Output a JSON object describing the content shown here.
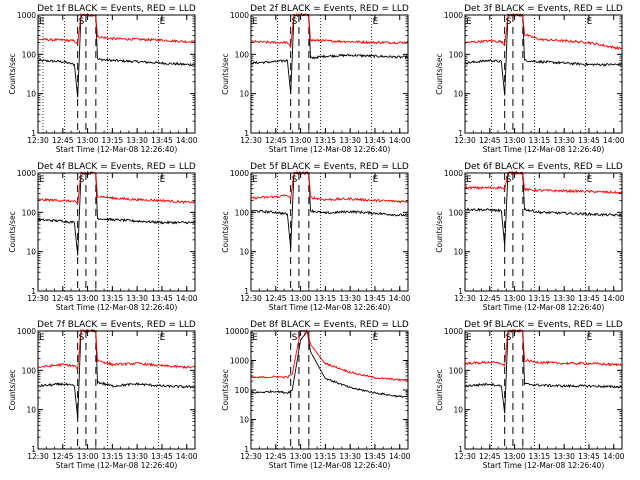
{
  "xlabel": "Start Time (12-Mar-08 12:26:40)",
  "ylabel": "Counts/sec",
  "marker_labels": [
    "E",
    "S",
    "E"
  ],
  "colors": {
    "events": "#000000",
    "lld": "#ff0000",
    "axes": "#000000"
  },
  "chart_data": [
    {
      "type": "line",
      "title": "Det 1f BLACK = Events, RED = LLD",
      "xlim": [
        "12:30",
        "14:05"
      ],
      "ylim": [
        1,
        1000
      ],
      "yscale": "log",
      "xticks": [
        "12:30",
        "12:45",
        "13:00",
        "13:15",
        "13:30",
        "13:45",
        "14:00"
      ],
      "yticks": [
        "1",
        "10",
        "100",
        "1000"
      ],
      "dotted_lines_x": [
        "12:33",
        "12:46",
        "13:12",
        "13:43"
      ],
      "dashed_lines_x": [
        "12:54",
        "12:59",
        "13:05"
      ],
      "series": [
        {
          "name": "Events",
          "x": [
            "12:30",
            "12:45",
            "12:52",
            "12:54",
            "12:56",
            "13:05",
            "13:06",
            "13:15",
            "13:30",
            "13:45",
            "14:00",
            "14:05"
          ],
          "values": [
            70,
            65,
            55,
            8,
            1000,
            1000,
            75,
            70,
            65,
            60,
            55,
            55
          ]
        },
        {
          "name": "LLD",
          "x": [
            "12:30",
            "12:45",
            "12:52",
            "12:54",
            "12:56",
            "13:05",
            "13:06",
            "13:15",
            "13:30",
            "13:45",
            "14:00",
            "14:05"
          ],
          "values": [
            240,
            230,
            220,
            180,
            1000,
            1000,
            280,
            250,
            240,
            230,
            210,
            210
          ]
        }
      ]
    },
    {
      "type": "line",
      "title": "Det 2f BLACK = Events, RED = LLD",
      "xlim": [
        "12:30",
        "14:05"
      ],
      "ylim": [
        1,
        1000
      ],
      "yscale": "log",
      "xticks": [
        "12:30",
        "12:45",
        "13:00",
        "13:15",
        "13:30",
        "13:45",
        "14:00"
      ],
      "yticks": [
        "1",
        "10",
        "100",
        "1000"
      ],
      "dotted_lines_x": [
        "12:46",
        "13:12",
        "13:43"
      ],
      "dashed_lines_x": [
        "12:54",
        "12:59",
        "13:05"
      ],
      "series": [
        {
          "name": "Events",
          "x": [
            "12:30",
            "12:45",
            "12:52",
            "12:54",
            "12:56",
            "13:05",
            "13:06",
            "13:15",
            "13:30",
            "13:45",
            "14:00",
            "14:05"
          ],
          "values": [
            60,
            65,
            70,
            10,
            1000,
            1000,
            80,
            90,
            95,
            90,
            85,
            85
          ]
        },
        {
          "name": "LLD",
          "x": [
            "12:30",
            "12:45",
            "12:52",
            "12:54",
            "12:56",
            "13:05",
            "13:06",
            "13:15",
            "13:30",
            "13:45",
            "14:00",
            "14:05"
          ],
          "values": [
            210,
            200,
            200,
            150,
            1000,
            1000,
            230,
            220,
            210,
            200,
            200,
            200
          ]
        }
      ]
    },
    {
      "type": "line",
      "title": "Det 3f BLACK = Events, RED = LLD",
      "xlim": [
        "12:30",
        "14:05"
      ],
      "ylim": [
        1,
        1000
      ],
      "yscale": "log",
      "xticks": [
        "12:30",
        "12:45",
        "13:00",
        "13:15",
        "13:30",
        "13:45",
        "14:00"
      ],
      "yticks": [
        "1",
        "10",
        "100",
        "1000"
      ],
      "dotted_lines_x": [
        "12:46",
        "13:12",
        "13:43"
      ],
      "dashed_lines_x": [
        "12:54",
        "12:59",
        "13:05"
      ],
      "series": [
        {
          "name": "Events",
          "x": [
            "12:30",
            "12:45",
            "12:52",
            "12:54",
            "12:56",
            "13:05",
            "13:06",
            "13:15",
            "13:30",
            "13:45",
            "14:00",
            "14:05"
          ],
          "values": [
            60,
            70,
            65,
            9,
            1000,
            1000,
            70,
            65,
            60,
            55,
            55,
            55
          ]
        },
        {
          "name": "LLD",
          "x": [
            "12:30",
            "12:45",
            "12:52",
            "12:54",
            "12:56",
            "13:05",
            "13:06",
            "13:15",
            "13:30",
            "13:45",
            "14:00",
            "14:05"
          ],
          "values": [
            200,
            220,
            210,
            170,
            1000,
            1000,
            320,
            240,
            220,
            200,
            150,
            140
          ]
        }
      ]
    },
    {
      "type": "line",
      "title": "Det 4f BLACK = Events, RED = LLD",
      "xlim": [
        "12:30",
        "14:05"
      ],
      "ylim": [
        1,
        1000
      ],
      "yscale": "log",
      "xticks": [
        "12:30",
        "12:45",
        "13:00",
        "13:15",
        "13:30",
        "13:45",
        "14:00"
      ],
      "yticks": [
        "1",
        "10",
        "100",
        "1000"
      ],
      "dotted_lines_x": [
        "12:46",
        "13:12",
        "13:43"
      ],
      "dashed_lines_x": [
        "12:54",
        "12:59",
        "13:05"
      ],
      "series": [
        {
          "name": "Events",
          "x": [
            "12:30",
            "12:45",
            "12:52",
            "12:54",
            "12:56",
            "13:05",
            "13:06",
            "13:15",
            "13:30",
            "13:45",
            "14:00",
            "14:05"
          ],
          "values": [
            65,
            60,
            55,
            8,
            1000,
            1000,
            70,
            65,
            60,
            55,
            55,
            55
          ]
        },
        {
          "name": "LLD",
          "x": [
            "12:30",
            "12:45",
            "12:52",
            "12:54",
            "12:56",
            "13:05",
            "13:06",
            "13:15",
            "13:30",
            "13:45",
            "14:00",
            "14:05"
          ],
          "values": [
            210,
            200,
            190,
            160,
            1000,
            1000,
            260,
            230,
            210,
            200,
            180,
            180
          ]
        }
      ]
    },
    {
      "type": "line",
      "title": "Det 5f BLACK = Events, RED = LLD",
      "xlim": [
        "12:30",
        "14:05"
      ],
      "ylim": [
        1,
        1000
      ],
      "yscale": "log",
      "xticks": [
        "12:30",
        "12:45",
        "13:00",
        "13:15",
        "13:30",
        "13:45",
        "14:00"
      ],
      "yticks": [
        "1",
        "10",
        "100",
        "1000"
      ],
      "dotted_lines_x": [
        "12:46",
        "13:12",
        "13:43"
      ],
      "dashed_lines_x": [
        "12:54",
        "12:59",
        "13:05"
      ],
      "series": [
        {
          "name": "Events",
          "x": [
            "12:30",
            "12:45",
            "12:52",
            "12:54",
            "12:56",
            "13:05",
            "13:06",
            "13:15",
            "13:30",
            "13:45",
            "14:00",
            "14:05"
          ],
          "values": [
            110,
            100,
            90,
            12,
            1000,
            1000,
            110,
            95,
            105,
            95,
            85,
            85
          ]
        },
        {
          "name": "LLD",
          "x": [
            "12:30",
            "12:45",
            "12:52",
            "12:54",
            "12:56",
            "13:05",
            "13:06",
            "13:15",
            "13:30",
            "13:45",
            "14:00",
            "14:05"
          ],
          "values": [
            230,
            250,
            270,
            220,
            1000,
            1000,
            240,
            210,
            220,
            200,
            190,
            190
          ]
        }
      ]
    },
    {
      "type": "line",
      "title": "Det 6f BLACK = Events, RED = LLD",
      "xlim": [
        "12:30",
        "14:05"
      ],
      "ylim": [
        1,
        1000
      ],
      "yscale": "log",
      "xticks": [
        "12:30",
        "12:45",
        "13:00",
        "13:15",
        "13:30",
        "13:45",
        "14:00"
      ],
      "yticks": [
        "1",
        "10",
        "100",
        "1000"
      ],
      "dotted_lines_x": [
        "12:46",
        "13:12",
        "13:43"
      ],
      "dashed_lines_x": [
        "12:54",
        "12:59",
        "13:05"
      ],
      "series": [
        {
          "name": "Events",
          "x": [
            "12:30",
            "12:45",
            "12:52",
            "12:54",
            "12:56",
            "13:05",
            "13:06",
            "13:15",
            "13:30",
            "13:45",
            "14:00",
            "14:05"
          ],
          "values": [
            120,
            115,
            110,
            14,
            1000,
            1000,
            120,
            100,
            95,
            90,
            85,
            85
          ]
        },
        {
          "name": "LLD",
          "x": [
            "12:30",
            "12:45",
            "12:52",
            "12:54",
            "12:56",
            "13:05",
            "13:06",
            "13:15",
            "13:30",
            "13:45",
            "14:00",
            "14:05"
          ],
          "values": [
            420,
            420,
            430,
            380,
            1000,
            1000,
            380,
            360,
            350,
            340,
            320,
            310
          ]
        }
      ]
    },
    {
      "type": "line",
      "title": "Det 7f BLACK = Events, RED = LLD",
      "xlim": [
        "12:30",
        "14:05"
      ],
      "ylim": [
        1,
        1000
      ],
      "yscale": "log",
      "xticks": [
        "12:30",
        "12:45",
        "13:00",
        "13:15",
        "13:30",
        "13:45",
        "14:00"
      ],
      "yticks": [
        "1",
        "10",
        "100",
        "1000"
      ],
      "dotted_lines_x": [
        "12:46",
        "13:12",
        "13:43"
      ],
      "dashed_lines_x": [
        "12:54",
        "12:59",
        "13:05"
      ],
      "series": [
        {
          "name": "Events",
          "x": [
            "12:30",
            "12:45",
            "12:52",
            "12:54",
            "12:56",
            "13:05",
            "13:06",
            "13:15",
            "13:30",
            "13:45",
            "14:00",
            "14:05"
          ],
          "values": [
            40,
            45,
            40,
            6,
            1000,
            1000,
            50,
            40,
            45,
            40,
            38,
            38
          ]
        },
        {
          "name": "LLD",
          "x": [
            "12:30",
            "12:45",
            "12:52",
            "12:54",
            "12:56",
            "13:05",
            "13:06",
            "13:15",
            "13:30",
            "13:45",
            "14:00",
            "14:05"
          ],
          "values": [
            120,
            140,
            130,
            110,
            1000,
            1000,
            180,
            140,
            150,
            130,
            120,
            120
          ]
        }
      ]
    },
    {
      "type": "line",
      "title": "Det 8f BLACK = Events, RED = LLD",
      "xlim": [
        "12:30",
        "14:05"
      ],
      "ylim": [
        1,
        10000
      ],
      "yscale": "log",
      "xticks": [
        "12:30",
        "12:45",
        "13:00",
        "13:15",
        "13:30",
        "13:45",
        "14:00"
      ],
      "yticks": [
        "1",
        "10",
        "100",
        "1000",
        "10000"
      ],
      "dotted_lines_x": [
        "12:46",
        "13:12",
        "13:43"
      ],
      "dashed_lines_x": [
        "12:54",
        "12:59",
        "13:05"
      ],
      "series": [
        {
          "name": "Events",
          "x": [
            "12:30",
            "12:45",
            "12:52",
            "12:55",
            "13:00",
            "13:04",
            "13:06",
            "13:15",
            "13:30",
            "13:45",
            "14:00",
            "14:05"
          ],
          "values": [
            80,
            90,
            80,
            100,
            5000,
            10000,
            2000,
            250,
            120,
            80,
            60,
            60
          ]
        },
        {
          "name": "LLD",
          "x": [
            "12:30",
            "12:45",
            "12:52",
            "12:55",
            "13:00",
            "13:04",
            "13:06",
            "13:15",
            "13:30",
            "13:45",
            "14:00",
            "14:05"
          ],
          "values": [
            260,
            280,
            270,
            350,
            10000,
            10000,
            3500,
            800,
            400,
            260,
            220,
            220
          ]
        }
      ]
    },
    {
      "type": "line",
      "title": "Det 9f BLACK = Events, RED = LLD",
      "xlim": [
        "12:30",
        "14:05"
      ],
      "ylim": [
        1,
        1000
      ],
      "yscale": "log",
      "xticks": [
        "12:30",
        "12:45",
        "13:00",
        "13:15",
        "13:30",
        "13:45",
        "14:00"
      ],
      "yticks": [
        "1",
        "10",
        "100",
        "1000"
      ],
      "dotted_lines_x": [
        "12:46",
        "13:12",
        "13:43"
      ],
      "dashed_lines_x": [
        "12:54",
        "12:59",
        "13:05"
      ],
      "series": [
        {
          "name": "Events",
          "x": [
            "12:30",
            "12:45",
            "12:52",
            "12:54",
            "12:56",
            "13:05",
            "13:06",
            "13:15",
            "13:30",
            "13:45",
            "14:00",
            "14:05"
          ],
          "values": [
            40,
            45,
            40,
            8,
            1000,
            1000,
            45,
            42,
            40,
            40,
            38,
            38
          ]
        },
        {
          "name": "LLD",
          "x": [
            "12:30",
            "12:45",
            "12:52",
            "12:54",
            "12:56",
            "13:05",
            "13:06",
            "13:15",
            "13:30",
            "13:45",
            "14:00",
            "14:05"
          ],
          "values": [
            150,
            160,
            150,
            130,
            1000,
            1000,
            180,
            160,
            150,
            150,
            140,
            140
          ]
        }
      ]
    }
  ]
}
